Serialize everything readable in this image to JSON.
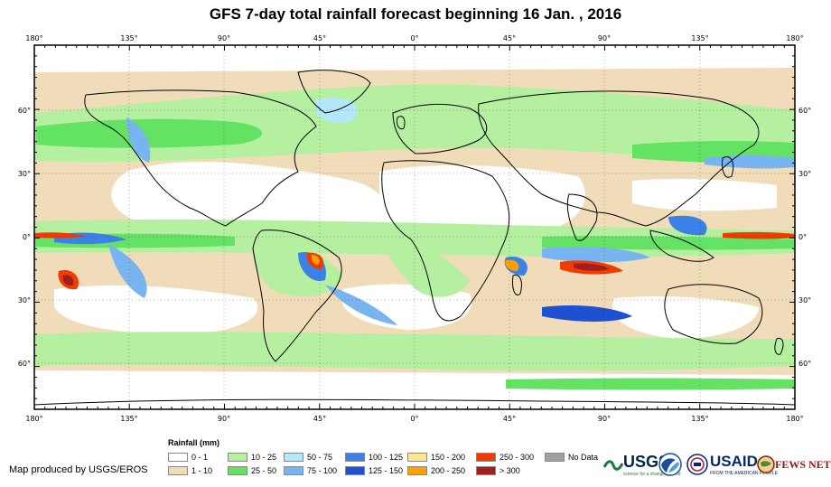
{
  "title": "GFS 7-day total rainfall forecast beginning 16 Jan. , 2016",
  "map": {
    "top_lon_labels": [
      "180°",
      "135°",
      "90°",
      "45°",
      "0°",
      "45°",
      "90°",
      "135°",
      "180°"
    ],
    "bottom_lon_labels": [
      "180°",
      "135°",
      "90°",
      "45°",
      "0°",
      "45°",
      "90°",
      "135°",
      "180°"
    ],
    "left_lat_labels": [
      "60°",
      "30°",
      "0°",
      "30°",
      "60°"
    ],
    "right_lat_labels": [
      "60°",
      "30°",
      "0°",
      "30°",
      "60°"
    ],
    "colors": {
      "ocean_dry": "#ffffff",
      "tan": "#f0dcb8",
      "light_green": "#b4f0a0",
      "green": "#64e264",
      "cyan": "#b4e8f8",
      "light_blue": "#78b4f0",
      "blue": "#3c82e6",
      "dark_blue": "#1e50d2",
      "yellow": "#ffe68c",
      "orange": "#ffa000",
      "red": "#f03c00",
      "dark_red": "#a01e1e",
      "gray": "#a0a0a0"
    }
  },
  "legend": {
    "title": "Rainfall (mm)",
    "items": [
      {
        "label": "0 - 1",
        "color": "#ffffff"
      },
      {
        "label": "1 - 10",
        "color": "#f0dcb8"
      },
      {
        "label": "10 - 25",
        "color": "#b4f0a0"
      },
      {
        "label": "25 - 50",
        "color": "#64e264"
      },
      {
        "label": "50 - 75",
        "color": "#b4e8f8"
      },
      {
        "label": "75 - 100",
        "color": "#78b4f0"
      },
      {
        "label": "100 - 125",
        "color": "#3c82e6"
      },
      {
        "label": "125 - 150",
        "color": "#1e50d2"
      },
      {
        "label": "150 - 200",
        "color": "#ffe68c"
      },
      {
        "label": "200 - 250",
        "color": "#ffa000"
      },
      {
        "label": "250 - 300",
        "color": "#f03c00"
      },
      {
        "label": "> 300",
        "color": "#a01e1e"
      },
      {
        "label": "No Data",
        "color": "#a0a0a0"
      }
    ]
  },
  "credit": "Map produced by USGS/EROS",
  "logos": {
    "usgs": "USGS",
    "usgs_tagline": "science for a changing world",
    "usaid": "USAID",
    "usaid_tagline": "FROM THE AMERICAN PEOPLE",
    "fews": "FEWS NET"
  }
}
